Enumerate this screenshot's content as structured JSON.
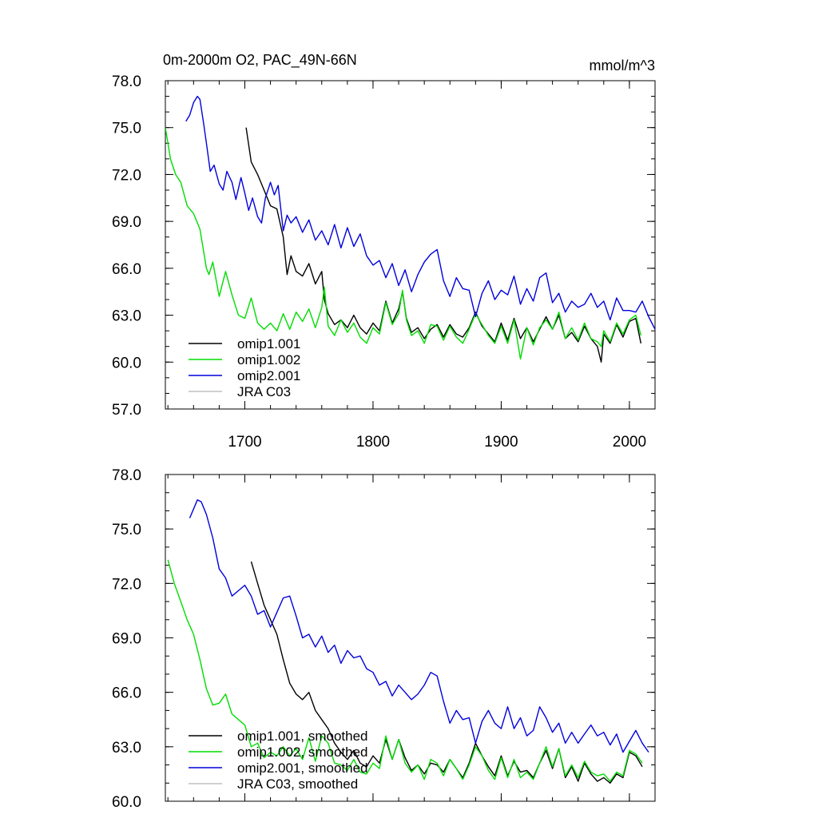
{
  "chart_data": [
    {
      "type": "line",
      "title": "0m-2000m O2, PAC_49N-66N",
      "units": "mmol/m^3",
      "xlim": [
        1638,
        2020
      ],
      "ylim": [
        57,
        78
      ],
      "xticks": [
        1700,
        1800,
        1900,
        2000
      ],
      "yticks": [
        57,
        60,
        63,
        66,
        69,
        72,
        75,
        78
      ],
      "ytick_labels": [
        "57.0",
        "60.0",
        "63.0",
        "66.0",
        "69.0",
        "72.0",
        "75.0",
        "78.0"
      ],
      "x_tick_labels": [
        "1700",
        "1800",
        "1900",
        "2000"
      ],
      "legend_position": "bottom-left",
      "series": [
        {
          "name": "omip1.001",
          "color": "#000000",
          "x": [
            1701,
            1705,
            1710,
            1715,
            1720,
            1725,
            1730,
            1733,
            1736,
            1740,
            1745,
            1750,
            1755,
            1760,
            1762,
            1765,
            1770,
            1775,
            1780,
            1785,
            1790,
            1795,
            1800,
            1805,
            1810,
            1815,
            1820,
            1823,
            1826,
            1830,
            1835,
            1840,
            1845,
            1850,
            1855,
            1860,
            1865,
            1870,
            1875,
            1880,
            1885,
            1890,
            1895,
            1900,
            1905,
            1910,
            1915,
            1920,
            1925,
            1930,
            1935,
            1940,
            1945,
            1950,
            1955,
            1960,
            1965,
            1970,
            1975,
            1978,
            1980,
            1985,
            1990,
            1995,
            2000,
            2005,
            2009
          ],
          "y": [
            75.0,
            72.8,
            72.0,
            71.0,
            70.0,
            69.8,
            68.0,
            65.6,
            66.8,
            65.8,
            65.5,
            66.3,
            65.0,
            65.8,
            64.0,
            63.1,
            62.4,
            62.7,
            62.2,
            63.0,
            62.2,
            61.8,
            62.5,
            62.0,
            63.9,
            62.5,
            63.4,
            64.5,
            62.8,
            61.9,
            62.2,
            61.5,
            62.1,
            62.4,
            61.6,
            62.4,
            61.8,
            61.6,
            62.2,
            63.2,
            62.3,
            61.8,
            61.3,
            62.5,
            61.4,
            62.8,
            61.5,
            62.2,
            61.3,
            62.1,
            62.9,
            62.1,
            63.0,
            61.5,
            61.9,
            61.3,
            62.3,
            61.5,
            61.0,
            60.0,
            61.8,
            61.2,
            62.4,
            61.6,
            62.6,
            62.8,
            61.2
          ]
        },
        {
          "name": "omip1.002",
          "color": "#00dd00",
          "x": [
            1638,
            1642,
            1646,
            1650,
            1655,
            1660,
            1665,
            1670,
            1672,
            1675,
            1680,
            1685,
            1690,
            1695,
            1700,
            1705,
            1710,
            1715,
            1720,
            1725,
            1730,
            1735,
            1740,
            1745,
            1750,
            1755,
            1760,
            1762,
            1765,
            1770,
            1775,
            1780,
            1785,
            1790,
            1795,
            1800,
            1805,
            1810,
            1815,
            1820,
            1823,
            1826,
            1830,
            1835,
            1840,
            1845,
            1850,
            1855,
            1860,
            1865,
            1870,
            1875,
            1880,
            1885,
            1890,
            1895,
            1900,
            1905,
            1910,
            1915,
            1920,
            1925,
            1930,
            1935,
            1940,
            1945,
            1950,
            1955,
            1960,
            1965,
            1970,
            1975,
            1978,
            1980,
            1985,
            1990,
            1995,
            2000,
            2005,
            2009
          ],
          "y": [
            75.0,
            73.0,
            72.0,
            71.5,
            70.0,
            69.5,
            68.5,
            66.0,
            65.6,
            66.4,
            64.2,
            65.8,
            64.3,
            63.0,
            62.8,
            64.1,
            62.5,
            62.1,
            62.5,
            62.0,
            63.1,
            62.1,
            63.2,
            62.6,
            63.4,
            62.2,
            63.5,
            64.8,
            62.3,
            61.7,
            62.7,
            61.9,
            62.5,
            61.6,
            61.2,
            62.2,
            61.8,
            63.8,
            62.4,
            63.1,
            64.6,
            62.7,
            61.7,
            62.0,
            61.2,
            62.4,
            62.3,
            61.4,
            62.3,
            61.6,
            61.2,
            62.1,
            63.1,
            62.4,
            61.7,
            61.2,
            62.3,
            61.2,
            62.7,
            60.2,
            62.2,
            61.1,
            62.2,
            62.7,
            62.1,
            63.2,
            61.5,
            62.2,
            61.4,
            62.5,
            61.5,
            61.3,
            61.0,
            62.0,
            61.3,
            62.5,
            61.8,
            62.7,
            63.0,
            61.7
          ]
        },
        {
          "name": "omip2.001",
          "color": "#0000dd",
          "x": [
            1654,
            1657,
            1660,
            1663,
            1665,
            1668,
            1670,
            1673,
            1676,
            1680,
            1683,
            1686,
            1690,
            1693,
            1697,
            1700,
            1703,
            1706,
            1710,
            1713,
            1716,
            1720,
            1723,
            1726,
            1730,
            1733,
            1736,
            1740,
            1745,
            1750,
            1755,
            1760,
            1765,
            1770,
            1775,
            1780,
            1785,
            1790,
            1795,
            1800,
            1805,
            1810,
            1815,
            1820,
            1825,
            1830,
            1835,
            1840,
            1845,
            1850,
            1855,
            1860,
            1865,
            1870,
            1875,
            1880,
            1885,
            1890,
            1895,
            1900,
            1905,
            1910,
            1915,
            1920,
            1925,
            1930,
            1935,
            1940,
            1945,
            1950,
            1955,
            1960,
            1965,
            1970,
            1975,
            1980,
            1985,
            1990,
            1995,
            2000,
            2005,
            2010,
            2015,
            2020
          ],
          "y": [
            75.4,
            75.8,
            76.6,
            77.0,
            76.8,
            75.2,
            74.0,
            72.2,
            72.6,
            71.4,
            71.0,
            72.2,
            71.5,
            70.4,
            71.8,
            70.8,
            69.7,
            70.5,
            69.3,
            68.9,
            70.5,
            71.5,
            70.7,
            71.3,
            68.4,
            69.4,
            68.9,
            69.3,
            68.3,
            69.1,
            67.8,
            68.4,
            67.5,
            68.8,
            67.3,
            68.6,
            67.4,
            68.2,
            66.8,
            66.2,
            66.5,
            65.4,
            66.3,
            64.9,
            65.9,
            64.5,
            65.6,
            66.4,
            66.9,
            67.2,
            65.2,
            64.2,
            65.4,
            64.7,
            64.6,
            62.9,
            64.4,
            65.2,
            64.0,
            64.6,
            64.3,
            65.5,
            63.7,
            64.7,
            63.9,
            65.4,
            65.7,
            63.8,
            64.4,
            63.2,
            63.9,
            63.5,
            63.7,
            64.4,
            63.5,
            63.9,
            62.7,
            64.1,
            63.3,
            63.3,
            63.2,
            63.9,
            62.9,
            62.1
          ]
        },
        {
          "name": "JRA C03",
          "color": "#c0c0c0",
          "x": [],
          "y": []
        }
      ]
    },
    {
      "type": "line",
      "xlim": [
        1638,
        2020
      ],
      "ylim": [
        60,
        78
      ],
      "yticks": [
        60,
        63,
        66,
        69,
        72,
        75,
        78
      ],
      "ytick_labels": [
        "60.0",
        "63.0",
        "66.0",
        "69.0",
        "72.0",
        "75.0",
        "78.0"
      ],
      "legend_position": "bottom-left",
      "series": [
        {
          "name": "omip1.001, smoothed",
          "color": "#000000",
          "x": [
            1705,
            1710,
            1715,
            1720,
            1725,
            1730,
            1735,
            1740,
            1745,
            1750,
            1755,
            1760,
            1765,
            1770,
            1775,
            1780,
            1785,
            1790,
            1795,
            1800,
            1805,
            1810,
            1815,
            1820,
            1825,
            1830,
            1835,
            1840,
            1845,
            1850,
            1855,
            1860,
            1865,
            1870,
            1875,
            1880,
            1885,
            1890,
            1895,
            1900,
            1905,
            1910,
            1915,
            1920,
            1925,
            1930,
            1935,
            1940,
            1945,
            1950,
            1955,
            1960,
            1965,
            1970,
            1975,
            1980,
            1985,
            1990,
            1995,
            2000,
            2005,
            2010
          ],
          "y": [
            73.2,
            72.0,
            70.8,
            70.0,
            69.2,
            67.8,
            66.5,
            65.9,
            65.6,
            66.0,
            65.0,
            64.5,
            64.0,
            63.2,
            62.7,
            62.3,
            62.8,
            62.1,
            61.9,
            62.5,
            62.1,
            63.4,
            62.3,
            63.4,
            62.4,
            61.7,
            62.0,
            61.5,
            62.1,
            62.0,
            61.6,
            62.3,
            61.8,
            61.3,
            62.1,
            63.2,
            62.5,
            61.9,
            61.4,
            62.5,
            61.4,
            62.2,
            61.6,
            61.7,
            61.3,
            62.1,
            62.8,
            61.8,
            62.9,
            61.3,
            61.9,
            61.1,
            62.1,
            61.5,
            61.1,
            61.3,
            61.0,
            61.5,
            61.3,
            62.7,
            62.5,
            61.9
          ]
        },
        {
          "name": "omip1.002, smoothed",
          "color": "#00dd00",
          "x": [
            1640,
            1645,
            1650,
            1655,
            1660,
            1665,
            1670,
            1675,
            1680,
            1685,
            1690,
            1695,
            1700,
            1705,
            1710,
            1715,
            1720,
            1725,
            1730,
            1735,
            1740,
            1745,
            1750,
            1755,
            1760,
            1765,
            1770,
            1775,
            1780,
            1785,
            1790,
            1795,
            1800,
            1805,
            1810,
            1815,
            1820,
            1825,
            1830,
            1835,
            1840,
            1845,
            1850,
            1855,
            1860,
            1865,
            1870,
            1875,
            1880,
            1885,
            1890,
            1895,
            1900,
            1905,
            1910,
            1915,
            1920,
            1925,
            1930,
            1935,
            1940,
            1945,
            1950,
            1955,
            1960,
            1965,
            1970,
            1975,
            1980,
            1985,
            1990,
            1995,
            2000,
            2005,
            2010
          ],
          "y": [
            73.3,
            72.0,
            71.0,
            70.0,
            69.2,
            67.8,
            66.2,
            65.3,
            65.4,
            65.9,
            64.8,
            64.5,
            64.2,
            63.0,
            63.2,
            62.4,
            62.7,
            62.5,
            63.0,
            62.5,
            62.9,
            62.3,
            63.5,
            62.2,
            63.6,
            63.2,
            62.1,
            62.0,
            61.7,
            62.3,
            61.6,
            61.5,
            62.1,
            61.8,
            63.6,
            62.3,
            63.4,
            62.1,
            61.6,
            62.0,
            61.2,
            62.3,
            62.1,
            61.4,
            62.3,
            61.8,
            61.2,
            62.0,
            63.0,
            62.5,
            61.7,
            61.2,
            62.4,
            61.3,
            62.3,
            61.3,
            61.6,
            61.2,
            62.1,
            63.0,
            61.9,
            62.9,
            61.4,
            62.0,
            61.3,
            62.2,
            61.6,
            61.4,
            61.5,
            61.1,
            61.6,
            61.4,
            62.8,
            62.6,
            62.1
          ]
        },
        {
          "name": "omip2.001, smoothed",
          "color": "#0000dd",
          "x": [
            1657,
            1660,
            1663,
            1666,
            1670,
            1675,
            1680,
            1685,
            1690,
            1695,
            1700,
            1705,
            1710,
            1715,
            1720,
            1725,
            1730,
            1735,
            1740,
            1745,
            1750,
            1755,
            1760,
            1765,
            1770,
            1775,
            1780,
            1785,
            1790,
            1795,
            1800,
            1805,
            1810,
            1815,
            1820,
            1825,
            1830,
            1835,
            1840,
            1845,
            1850,
            1855,
            1860,
            1865,
            1870,
            1875,
            1880,
            1885,
            1890,
            1895,
            1900,
            1905,
            1910,
            1915,
            1920,
            1925,
            1930,
            1935,
            1940,
            1945,
            1950,
            1955,
            1960,
            1965,
            1970,
            1975,
            1980,
            1985,
            1990,
            1995,
            2000,
            2005,
            2010,
            2015
          ],
          "y": [
            75.6,
            76.1,
            76.6,
            76.5,
            75.8,
            74.5,
            72.8,
            72.3,
            71.3,
            71.6,
            71.9,
            71.3,
            70.3,
            70.5,
            69.6,
            70.4,
            71.2,
            71.3,
            70.2,
            69.0,
            69.2,
            68.5,
            69.1,
            68.2,
            68.6,
            67.6,
            68.3,
            67.9,
            68.0,
            67.3,
            67.1,
            66.4,
            66.6,
            65.8,
            66.4,
            66.0,
            65.6,
            65.9,
            66.4,
            67.1,
            66.9,
            65.5,
            64.3,
            65.0,
            64.5,
            64.6,
            63.2,
            64.4,
            65.0,
            64.3,
            64.0,
            65.2,
            64.0,
            64.6,
            63.6,
            63.9,
            65.2,
            64.6,
            63.8,
            64.3,
            63.2,
            63.8,
            63.2,
            63.7,
            64.2,
            63.6,
            63.8,
            63.1,
            63.7,
            62.7,
            63.3,
            63.9,
            63.2,
            62.7
          ]
        },
        {
          "name": "JRA C03, smoothed",
          "color": "#c0c0c0",
          "x": [],
          "y": []
        }
      ]
    }
  ]
}
